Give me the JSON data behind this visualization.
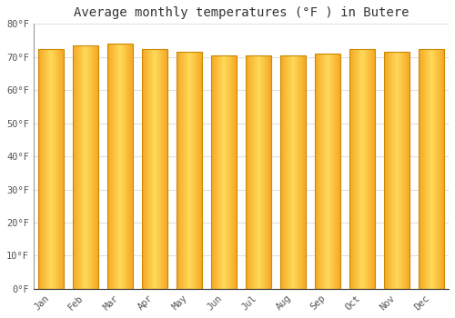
{
  "title": "Average monthly temperatures (°F ) in Butere",
  "months": [
    "Jan",
    "Feb",
    "Mar",
    "Apr",
    "May",
    "Jun",
    "Jul",
    "Aug",
    "Sep",
    "Oct",
    "Nov",
    "Dec"
  ],
  "values": [
    72.5,
    73.5,
    74.0,
    72.5,
    71.5,
    70.5,
    70.5,
    70.5,
    71.0,
    72.5,
    71.5,
    72.5
  ],
  "bar_color_center": "#FFD966",
  "bar_color_edge": "#F5A623",
  "bar_edge_color": "#CC8800",
  "background_color": "#FFFFFF",
  "grid_color": "#E0E0E0",
  "ylim": [
    0,
    80
  ],
  "yticks": [
    0,
    10,
    20,
    30,
    40,
    50,
    60,
    70,
    80
  ],
  "ytick_labels": [
    "0°F",
    "10°F",
    "20°F",
    "30°F",
    "40°F",
    "50°F",
    "60°F",
    "70°F",
    "80°F"
  ],
  "title_fontsize": 10,
  "tick_fontsize": 7.5,
  "title_font": "monospace",
  "tick_font": "monospace",
  "bar_width": 0.75
}
